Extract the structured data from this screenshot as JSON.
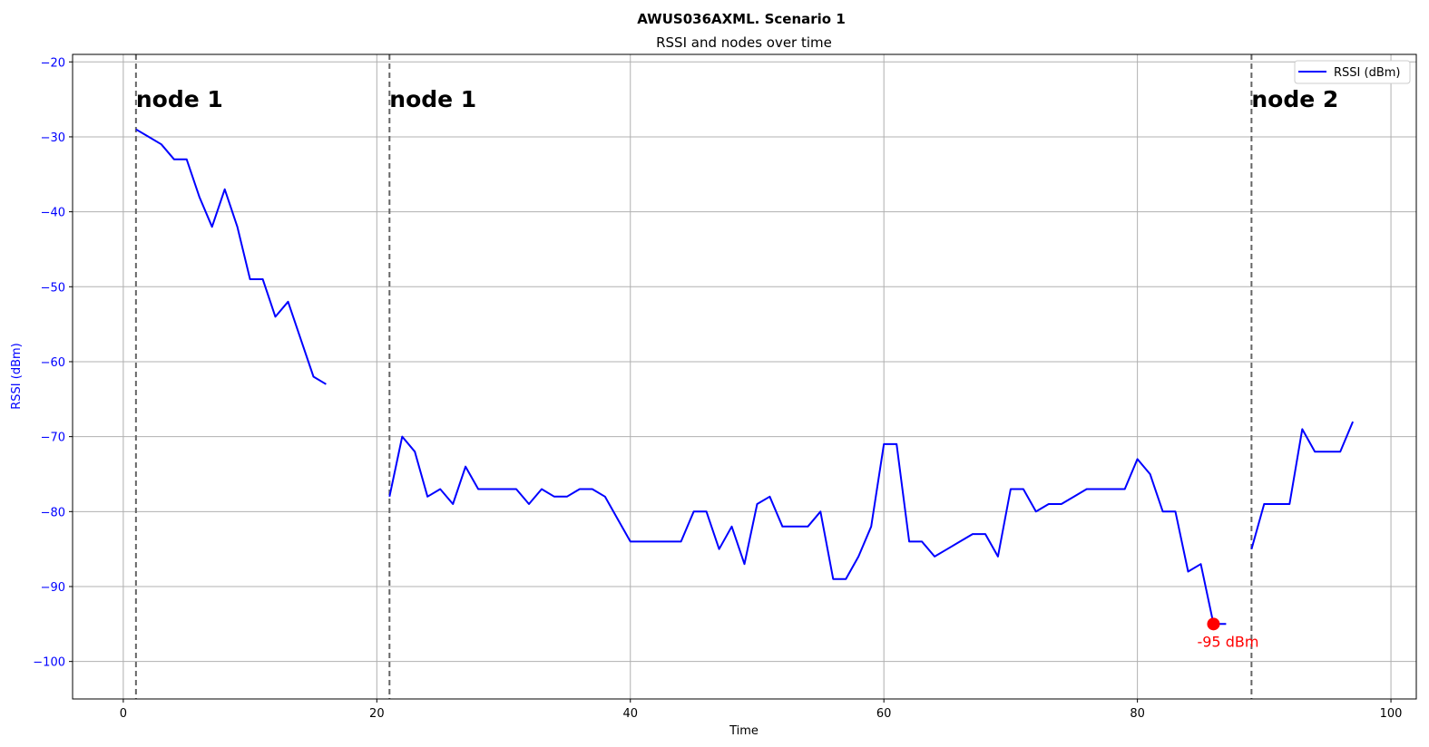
{
  "colors": {
    "series": "#0000ff",
    "marker": "#ff0000",
    "grid": "#b0b0b0",
    "node_line": "#666666",
    "ylabel": "#0000ff"
  },
  "chart_data": {
    "type": "line",
    "title": "AWUS036AXML. Scenario 1",
    "subtitle": "RSSI and nodes over time",
    "xlabel": "Time",
    "ylabel": "RSSI (dBm)",
    "xlim": [
      -4,
      102
    ],
    "ylim": [
      -105,
      -19
    ],
    "x_ticks": [
      0,
      20,
      40,
      60,
      80,
      100
    ],
    "y_ticks": [
      -20,
      -30,
      -40,
      -50,
      -60,
      -70,
      -80,
      -90,
      -100
    ],
    "grid": true,
    "legend": {
      "position": "top-right",
      "entries": [
        "RSSI (dBm)"
      ]
    },
    "series": [
      {
        "name": "RSSI (dBm)",
        "segments": [
          [
            [
              1,
              -29
            ],
            [
              2,
              -30
            ],
            [
              3,
              -31
            ],
            [
              4,
              -33
            ],
            [
              5,
              -33
            ],
            [
              6,
              -38
            ],
            [
              7,
              -42
            ],
            [
              8,
              -37
            ],
            [
              9,
              -42
            ],
            [
              10,
              -49
            ],
            [
              11,
              -49
            ],
            [
              12,
              -54
            ],
            [
              13,
              -52
            ],
            [
              14,
              -57
            ],
            [
              15,
              -62
            ],
            [
              16,
              -63
            ]
          ],
          [
            [
              21,
              -78
            ],
            [
              22,
              -70
            ],
            [
              23,
              -72
            ],
            [
              24,
              -78
            ],
            [
              25,
              -77
            ],
            [
              26,
              -79
            ],
            [
              27,
              -74
            ],
            [
              28,
              -77
            ],
            [
              29,
              -77
            ],
            [
              30,
              -77
            ],
            [
              31,
              -77
            ],
            [
              32,
              -79
            ],
            [
              33,
              -77
            ],
            [
              34,
              -78
            ],
            [
              35,
              -78
            ],
            [
              36,
              -77
            ],
            [
              37,
              -77
            ],
            [
              38,
              -78
            ],
            [
              39,
              -81
            ],
            [
              40,
              -84
            ],
            [
              41,
              -84
            ],
            [
              42,
              -84
            ],
            [
              43,
              -84
            ],
            [
              44,
              -84
            ],
            [
              45,
              -80
            ],
            [
              46,
              -80
            ],
            [
              47,
              -85
            ],
            [
              48,
              -82
            ],
            [
              49,
              -87
            ],
            [
              50,
              -79
            ],
            [
              51,
              -78
            ],
            [
              52,
              -82
            ],
            [
              53,
              -82
            ],
            [
              54,
              -82
            ],
            [
              55,
              -80
            ],
            [
              56,
              -89
            ],
            [
              57,
              -89
            ],
            [
              58,
              -86
            ],
            [
              59,
              -82
            ],
            [
              60,
              -71
            ],
            [
              61,
              -71
            ],
            [
              62,
              -84
            ],
            [
              63,
              -84
            ],
            [
              64,
              -86
            ],
            [
              65,
              -85
            ],
            [
              66,
              -84
            ],
            [
              67,
              -83
            ],
            [
              68,
              -83
            ],
            [
              69,
              -86
            ],
            [
              70,
              -77
            ],
            [
              71,
              -77
            ],
            [
              72,
              -80
            ],
            [
              73,
              -79
            ],
            [
              74,
              -79
            ],
            [
              75,
              -78
            ],
            [
              76,
              -77
            ],
            [
              77,
              -77
            ],
            [
              78,
              -77
            ],
            [
              79,
              -77
            ],
            [
              80,
              -73
            ],
            [
              81,
              -75
            ],
            [
              82,
              -80
            ],
            [
              83,
              -80
            ],
            [
              84,
              -88
            ],
            [
              85,
              -87
            ],
            [
              86,
              -95
            ],
            [
              87,
              -95
            ]
          ],
          [
            [
              89,
              -85
            ],
            [
              90,
              -79
            ],
            [
              91,
              -79
            ],
            [
              92,
              -79
            ],
            [
              93,
              -69
            ],
            [
              94,
              -72
            ],
            [
              95,
              -72
            ],
            [
              96,
              -72
            ],
            [
              97,
              -68
            ]
          ]
        ]
      }
    ],
    "node_markers": [
      {
        "x": 1,
        "label": "node 1"
      },
      {
        "x": 21,
        "label": "node 1"
      },
      {
        "x": 89,
        "label": "node 2"
      }
    ],
    "min_point": {
      "x": 86,
      "y": -95,
      "label": "-95 dBm"
    }
  }
}
